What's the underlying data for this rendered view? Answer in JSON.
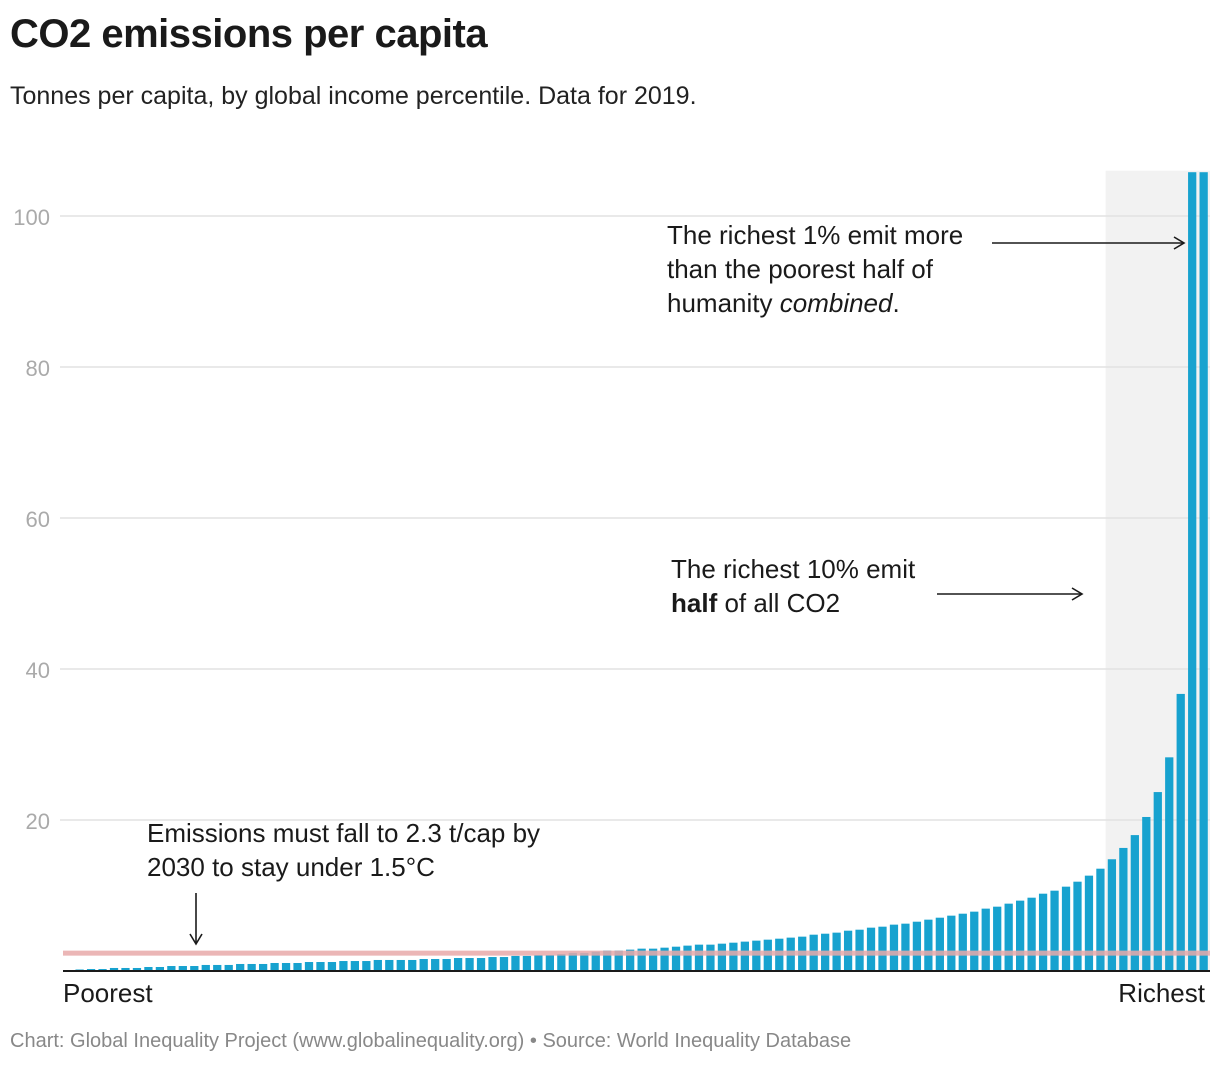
{
  "title": "CO2 emissions per capita",
  "subtitle": "Tonnes per capita, by global income percentile. Data for 2019.",
  "footer": "Chart: Global Inequality Project (www.globalinequality.org) • Source: World Inequality Database",
  "annotations": {
    "richest1_line1": "The richest 1% emit more",
    "richest1_line2": "than the poorest half of",
    "richest1_line3a": "humanity ",
    "richest1_line3b": "combined",
    "richest1_line3c": ".",
    "richest10_line1": "The richest 10% emit",
    "richest10_bold": "half",
    "richest10_line2": " of all CO2",
    "target_line1": "Emissions must fall to 2.3 t/cap by",
    "target_line2": "2030 to stay under 1.5°C"
  },
  "colors": {
    "bar": "#17a2cf",
    "target": "#e8a9a9",
    "highlight": "#f2f2f2",
    "grid": "#e2e2e2"
  },
  "chart_data": {
    "type": "bar",
    "title": "CO2 emissions per capita",
    "xlabel": "Global income percentile",
    "ylabel": "Tonnes per capita",
    "x_start_label": "Poorest",
    "x_end_label": "Richest",
    "ylim": [
      0,
      106
    ],
    "yticks": [
      20,
      40,
      60,
      80,
      100
    ],
    "grid": true,
    "target_line": {
      "value": 2.3,
      "label": "2.3 t/cap"
    },
    "highlight_range_percentiles": [
      91,
      100
    ],
    "values": [
      0.13,
      0.2,
      0.26,
      0.26,
      0.4,
      0.4,
      0.4,
      0.53,
      0.53,
      0.66,
      0.66,
      0.66,
      0.8,
      0.8,
      0.8,
      0.93,
      0.93,
      0.93,
      1.06,
      1.06,
      1.06,
      1.19,
      1.19,
      1.19,
      1.32,
      1.32,
      1.32,
      1.46,
      1.46,
      1.46,
      1.46,
      1.59,
      1.59,
      1.59,
      1.72,
      1.72,
      1.72,
      1.85,
      1.85,
      2.0,
      2.0,
      2.1,
      2.1,
      2.25,
      2.4,
      2.4,
      2.56,
      2.7,
      2.7,
      2.83,
      2.96,
      2.96,
      3.09,
      3.22,
      3.36,
      3.49,
      3.49,
      3.62,
      3.75,
      3.89,
      4.02,
      4.15,
      4.28,
      4.42,
      4.55,
      4.81,
      4.94,
      5.08,
      5.34,
      5.47,
      5.74,
      5.87,
      6.14,
      6.27,
      6.53,
      6.8,
      7.06,
      7.33,
      7.59,
      7.86,
      8.26,
      8.52,
      8.92,
      9.32,
      9.71,
      10.24,
      10.64,
      11.17,
      11.83,
      12.63,
      13.55,
      14.8,
      16.3,
      18.0,
      20.4,
      23.7,
      28.3,
      36.7,
      105.8,
      105.8
    ]
  }
}
